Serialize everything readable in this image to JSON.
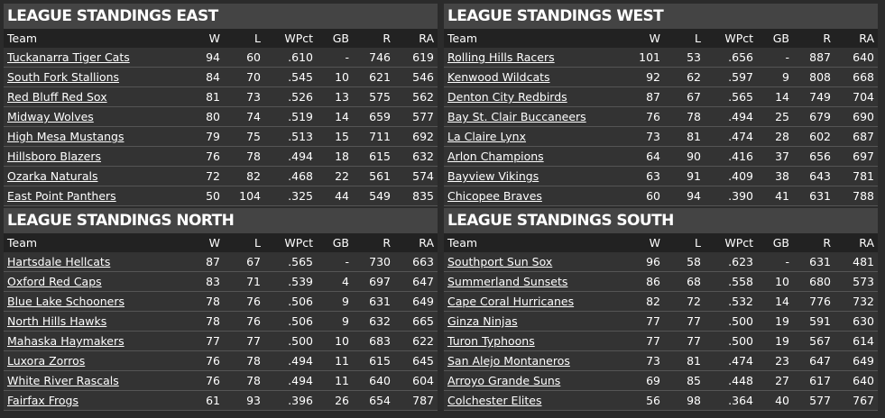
{
  "columns": [
    "Team",
    "W",
    "L",
    "WPct",
    "GB",
    "R",
    "RA"
  ],
  "panels": [
    {
      "title": "LEAGUE STANDINGS EAST",
      "rows": [
        [
          "Tuckanarra Tiger Cats",
          "94",
          "60",
          ".610",
          "-",
          "746",
          "619"
        ],
        [
          "South Fork Stallions",
          "84",
          "70",
          ".545",
          "10",
          "621",
          "546"
        ],
        [
          "Red Bluff Red Sox",
          "81",
          "73",
          ".526",
          "13",
          "575",
          "562"
        ],
        [
          "Midway Wolves",
          "80",
          "74",
          ".519",
          "14",
          "659",
          "577"
        ],
        [
          "High Mesa Mustangs",
          "79",
          "75",
          ".513",
          "15",
          "711",
          "692"
        ],
        [
          "Hillsboro Blazers",
          "76",
          "78",
          ".494",
          "18",
          "615",
          "632"
        ],
        [
          "Ozarka Naturals",
          "72",
          "82",
          ".468",
          "22",
          "561",
          "574"
        ],
        [
          "East Point Panthers",
          "50",
          "104",
          ".325",
          "44",
          "549",
          "835"
        ]
      ]
    },
    {
      "title": "LEAGUE STANDINGS WEST",
      "rows": [
        [
          "Rolling Hills Racers",
          "101",
          "53",
          ".656",
          "-",
          "887",
          "640"
        ],
        [
          "Kenwood Wildcats",
          "92",
          "62",
          ".597",
          "9",
          "808",
          "668"
        ],
        [
          "Denton City Redbirds",
          "87",
          "67",
          ".565",
          "14",
          "749",
          "704"
        ],
        [
          "Bay St. Clair Buccaneers",
          "76",
          "78",
          ".494",
          "25",
          "679",
          "690"
        ],
        [
          "La Claire Lynx",
          "73",
          "81",
          ".474",
          "28",
          "602",
          "687"
        ],
        [
          "Arlon Champions",
          "64",
          "90",
          ".416",
          "37",
          "656",
          "697"
        ],
        [
          "Bayview Vikings",
          "63",
          "91",
          ".409",
          "38",
          "643",
          "781"
        ],
        [
          "Chicopee Braves",
          "60",
          "94",
          ".390",
          "41",
          "631",
          "788"
        ]
      ]
    },
    {
      "title": "LEAGUE STANDINGS NORTH",
      "rows": [
        [
          "Hartsdale Hellcats",
          "87",
          "67",
          ".565",
          "-",
          "730",
          "663"
        ],
        [
          "Oxford Red Caps",
          "83",
          "71",
          ".539",
          "4",
          "697",
          "647"
        ],
        [
          "Blue Lake Schooners",
          "78",
          "76",
          ".506",
          "9",
          "631",
          "649"
        ],
        [
          "North Hills Hawks",
          "78",
          "76",
          ".506",
          "9",
          "632",
          "665"
        ],
        [
          "Mahaska Haymakers",
          "77",
          "77",
          ".500",
          "10",
          "683",
          "622"
        ],
        [
          "Luxora Zorros",
          "76",
          "78",
          ".494",
          "11",
          "615",
          "645"
        ],
        [
          "White River Rascals",
          "76",
          "78",
          ".494",
          "11",
          "640",
          "604"
        ],
        [
          "Fairfax Frogs",
          "61",
          "93",
          ".396",
          "26",
          "654",
          "787"
        ]
      ]
    },
    {
      "title": "LEAGUE STANDINGS SOUTH",
      "rows": [
        [
          "Southport Sun Sox",
          "96",
          "58",
          ".623",
          "-",
          "631",
          "481"
        ],
        [
          "Summerland Sunsets",
          "86",
          "68",
          ".558",
          "10",
          "680",
          "573"
        ],
        [
          "Cape Coral Hurricanes",
          "82",
          "72",
          ".532",
          "14",
          "776",
          "732"
        ],
        [
          "Ginza Ninjas",
          "77",
          "77",
          ".500",
          "19",
          "591",
          "630"
        ],
        [
          "Turon Typhoons",
          "77",
          "77",
          ".500",
          "19",
          "567",
          "614"
        ],
        [
          "San Alejo Montaneros",
          "73",
          "81",
          ".474",
          "23",
          "647",
          "649"
        ],
        [
          "Arroyo Grande Suns",
          "69",
          "85",
          ".448",
          "27",
          "617",
          "640"
        ],
        [
          "Colchester Elites",
          "56",
          "98",
          ".364",
          "40",
          "577",
          "767"
        ]
      ]
    }
  ]
}
